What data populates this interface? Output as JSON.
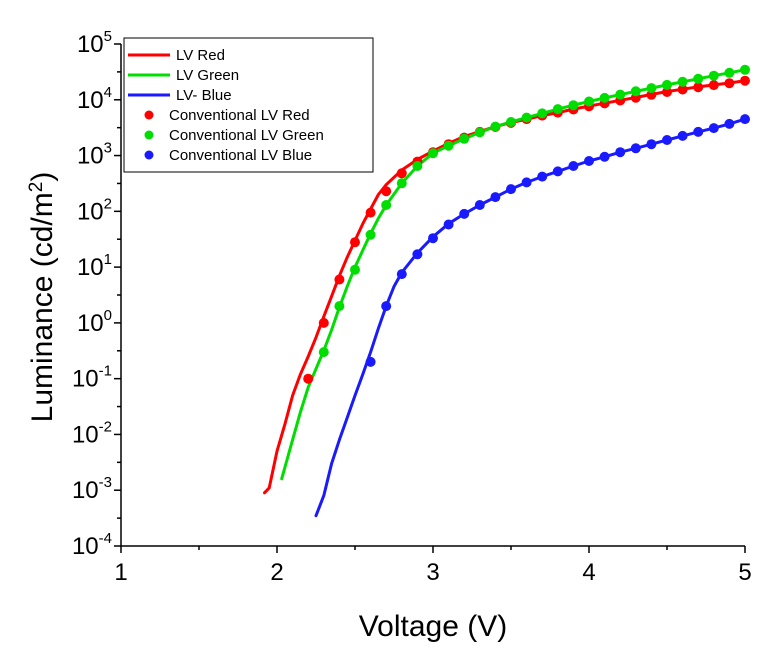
{
  "chart_data": {
    "type": "line",
    "xlabel": "Voltage (V)",
    "ylabel_prefix": "Luminance (cd/m",
    "ylabel_sup": "2",
    "ylabel_suffix": ")",
    "xlim": [
      1,
      5
    ],
    "ylim": [
      0.0001,
      100000
    ],
    "yscale": "log",
    "grid": false,
    "legend_position": "top-left",
    "x_ticks": [
      {
        "value": 1,
        "label": "1"
      },
      {
        "value": 2,
        "label": "2"
      },
      {
        "value": 3,
        "label": "3"
      },
      {
        "value": 4,
        "label": "4"
      },
      {
        "value": 5,
        "label": "5"
      }
    ],
    "y_ticks": [
      {
        "value": 0.0001,
        "base": "10",
        "exp": "-4"
      },
      {
        "value": 0.001,
        "base": "10",
        "exp": "-3"
      },
      {
        "value": 0.01,
        "base": "10",
        "exp": "-2"
      },
      {
        "value": 0.1,
        "base": "10",
        "exp": "-1"
      },
      {
        "value": 1,
        "base": "10",
        "exp": "0"
      },
      {
        "value": 10,
        "base": "10",
        "exp": "1"
      },
      {
        "value": 100,
        "base": "10",
        "exp": "2"
      },
      {
        "value": 1000,
        "base": "10",
        "exp": "3"
      },
      {
        "value": 10000,
        "base": "10",
        "exp": "4"
      },
      {
        "value": 100000,
        "base": "10",
        "exp": "5"
      }
    ],
    "series": [
      {
        "name": "LV Red",
        "kind": "line",
        "color": "#ff0000",
        "x": [
          1.92,
          1.95,
          2.0,
          2.05,
          2.1,
          2.15,
          2.2,
          2.25,
          2.3,
          2.35,
          2.4,
          2.45,
          2.5,
          2.55,
          2.6,
          2.65,
          2.7,
          2.8,
          2.9,
          3.0,
          3.1,
          3.2,
          3.3,
          3.4,
          3.5,
          3.6,
          3.7,
          3.8,
          3.9,
          4.0,
          4.1,
          4.2,
          4.3,
          4.4,
          4.5,
          4.6,
          4.7,
          4.8,
          4.9,
          5.0
        ],
        "y": [
          0.0009,
          0.0011,
          0.005,
          0.015,
          0.05,
          0.12,
          0.25,
          0.55,
          1.3,
          3.0,
          7.0,
          15,
          30,
          60,
          110,
          200,
          300,
          550,
          850,
          1200,
          1650,
          2200,
          2700,
          3300,
          3900,
          4500,
          5200,
          5900,
          6800,
          7700,
          8700,
          9800,
          11000,
          12500,
          14000,
          15500,
          17000,
          18500,
          20000,
          22000
        ]
      },
      {
        "name": "LV Green",
        "kind": "line",
        "color": "#00dd00",
        "x": [
          2.03,
          2.07,
          2.1,
          2.15,
          2.2,
          2.25,
          2.3,
          2.35,
          2.4,
          2.45,
          2.5,
          2.55,
          2.6,
          2.65,
          2.7,
          2.8,
          2.9,
          3.0,
          3.1,
          3.2,
          3.3,
          3.4,
          3.5,
          3.6,
          3.7,
          3.8,
          3.9,
          4.0,
          4.1,
          4.2,
          4.3,
          4.4,
          4.5,
          4.6,
          4.7,
          4.8,
          4.9,
          5.0
        ],
        "y": [
          0.0016,
          0.004,
          0.008,
          0.025,
          0.07,
          0.15,
          0.32,
          0.75,
          1.9,
          4.5,
          10,
          20,
          40,
          75,
          130,
          320,
          650,
          1100,
          1500,
          2000,
          2600,
          3300,
          4000,
          4800,
          5700,
          6800,
          8000,
          9300,
          10800,
          12400,
          14200,
          16200,
          18500,
          21000,
          23800,
          27000,
          30500,
          34500
        ]
      },
      {
        "name": "LV- Blue",
        "kind": "line",
        "color": "#1a1aff",
        "x": [
          2.25,
          2.3,
          2.35,
          2.4,
          2.45,
          2.5,
          2.55,
          2.6,
          2.65,
          2.7,
          2.75,
          2.8,
          2.9,
          3.0,
          3.1,
          3.2,
          3.3,
          3.4,
          3.5,
          3.6,
          3.7,
          3.8,
          3.9,
          4.0,
          4.1,
          4.2,
          4.3,
          4.4,
          4.5,
          4.6,
          4.7,
          4.8,
          4.9,
          5.0
        ],
        "y": [
          0.00035,
          0.0008,
          0.003,
          0.008,
          0.02,
          0.05,
          0.12,
          0.3,
          0.8,
          2.0,
          4.5,
          8.0,
          18,
          35,
          60,
          90,
          130,
          180,
          250,
          330,
          420,
          520,
          650,
          800,
          950,
          1150,
          1350,
          1600,
          1900,
          2250,
          2650,
          3100,
          3700,
          4500
        ]
      },
      {
        "name": "Conventional LV Red",
        "kind": "scatter",
        "color": "#ff0000",
        "x": [
          2.2,
          2.3,
          2.4,
          2.5,
          2.6,
          2.7,
          2.8,
          2.9,
          3.0,
          3.1,
          3.2,
          3.3,
          3.4,
          3.5,
          3.6,
          3.7,
          3.8,
          3.9,
          4.0,
          4.1,
          4.2,
          4.3,
          4.4,
          4.5,
          4.6,
          4.7,
          4.8,
          4.9,
          5.0
        ],
        "y": [
          0.1,
          1.0,
          6.0,
          28,
          95,
          230,
          480,
          780,
          1150,
          1600,
          2100,
          2650,
          3250,
          3850,
          4500,
          5200,
          5900,
          6700,
          7600,
          8600,
          9700,
          10900,
          12300,
          13800,
          15300,
          16800,
          18300,
          19800,
          22000
        ]
      },
      {
        "name": "Conventional LV Green",
        "kind": "scatter",
        "color": "#00dd00",
        "x": [
          2.3,
          2.4,
          2.5,
          2.6,
          2.7,
          2.8,
          2.9,
          3.0,
          3.1,
          3.2,
          3.3,
          3.4,
          3.5,
          3.6,
          3.7,
          3.8,
          3.9,
          4.0,
          4.1,
          4.2,
          4.3,
          4.4,
          4.5,
          4.6,
          4.7,
          4.8,
          4.9,
          5.0
        ],
        "y": [
          0.3,
          2.0,
          9.0,
          38,
          130,
          320,
          650,
          1100,
          1500,
          2000,
          2600,
          3300,
          4000,
          4800,
          5700,
          6800,
          8000,
          9300,
          10800,
          12400,
          14200,
          16200,
          18500,
          21000,
          23800,
          27000,
          30500,
          34500
        ]
      },
      {
        "name": "Conventional LV Blue",
        "kind": "scatter",
        "color": "#1a1aff",
        "x": [
          2.6,
          2.7,
          2.8,
          2.9,
          3.0,
          3.1,
          3.2,
          3.3,
          3.4,
          3.5,
          3.6,
          3.7,
          3.8,
          3.9,
          4.0,
          4.1,
          4.2,
          4.3,
          4.4,
          4.5,
          4.6,
          4.7,
          4.8,
          4.9,
          5.0
        ],
        "y": [
          0.2,
          2.0,
          7.5,
          17,
          33,
          58,
          90,
          130,
          180,
          250,
          330,
          420,
          520,
          650,
          800,
          950,
          1150,
          1350,
          1600,
          1900,
          2250,
          2650,
          3100,
          3700,
          4500
        ]
      }
    ]
  }
}
